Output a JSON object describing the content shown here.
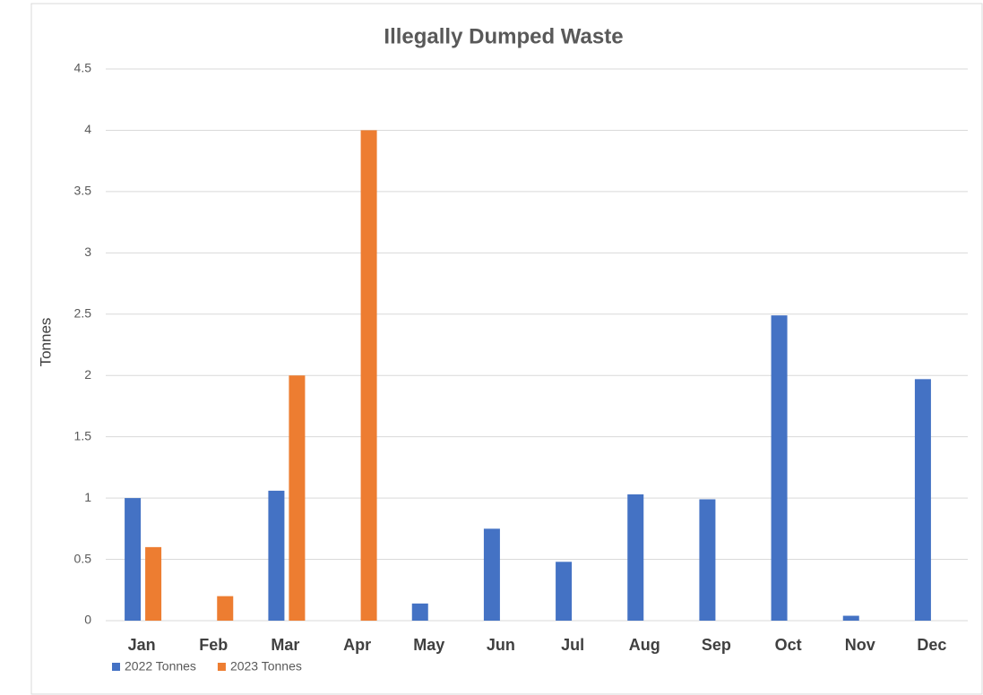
{
  "chart_data": {
    "type": "bar",
    "title": "Illegally Dumped Waste",
    "y_label": "Tonnes",
    "categories": [
      "Jan",
      "Feb",
      "Mar",
      "Apr",
      "May",
      "Jun",
      "Jul",
      "Aug",
      "Sep",
      "Oct",
      "Nov",
      "Dec"
    ],
    "series": [
      {
        "name": "2022 Tonnes",
        "color": "#4472c4",
        "values": [
          1,
          null,
          1.06,
          null,
          0.14,
          0.75,
          0.48,
          1.03,
          0.99,
          2.49,
          0.04,
          1.97
        ]
      },
      {
        "name": "2023 Tonnes",
        "color": "#ed7d31",
        "values": [
          0.6,
          0.2,
          2,
          4,
          null,
          null,
          null,
          null,
          null,
          null,
          null,
          null
        ]
      }
    ],
    "ylim": [
      0,
      4.5
    ],
    "yticks": [
      0,
      0.5,
      1,
      1.5,
      2,
      2.5,
      3,
      3.5,
      4,
      4.5
    ],
    "grid": true
  }
}
